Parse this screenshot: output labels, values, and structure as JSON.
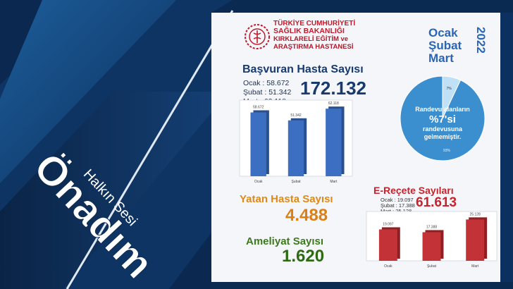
{
  "logo": {
    "line1": "TÜRKİYE CUMHURİYETİ",
    "line2": "SAĞLIK BAKANLIĞI",
    "line3": "KIRKLARELİ EĞİTİM ve",
    "line4": "ARAŞTIRMA HASTANESİ"
  },
  "period": {
    "months": [
      "Ocak",
      "Şubat",
      "Mart"
    ],
    "year": "2022"
  },
  "basvuran": {
    "title": "Başvuran Hasta Sayısı",
    "lines": [
      "Ocak  : 58.672",
      "Şubat : 51.342",
      "Mart  : 62.118"
    ],
    "total": "172.132"
  },
  "yatan": {
    "title": "Yatan Hasta Sayısı",
    "value": "4.488"
  },
  "ameliyat": {
    "title": "Ameliyat Sayısı",
    "value": "1.620"
  },
  "erecete": {
    "title": "E-Reçete Sayıları",
    "lines": [
      "Ocak  : 19.097",
      "Şubat : 17.388",
      "Mart  : 25.128"
    ],
    "total": "61.613"
  },
  "pie": {
    "line1": "Randevu alanların",
    "big": "%7'si",
    "line2": "randevusuna",
    "line3": "gelmemiştir.",
    "small_label": "7%",
    "large_label": "93%",
    "percent_missed": 7
  },
  "brand": {
    "top": "Halkın Sesi",
    "main": "Önadım"
  },
  "colors": {
    "navy": "#0e3766",
    "accent_blue": "#2a66b6",
    "bar_blue": "#3c6fc2",
    "bar_red": "#c23236",
    "pie_blue": "#3b8fcf"
  },
  "chart_data": [
    {
      "type": "bar",
      "categories": [
        "Ocak",
        "Şubat",
        "Mart"
      ],
      "values": [
        58672,
        51342,
        62118
      ],
      "value_labels": [
        "58.672",
        "51.342",
        "62.118"
      ],
      "ylim": [
        0,
        70000
      ]
    },
    {
      "type": "bar",
      "categories": [
        "Ocak",
        "Şubat",
        "Mart"
      ],
      "values": [
        19097,
        17388,
        25128
      ],
      "value_labels": [
        "19.097",
        "17.388",
        "25.128"
      ],
      "ylim": [
        0,
        30000
      ]
    },
    {
      "type": "pie",
      "categories": [
        "7%",
        "93%"
      ],
      "values": [
        7,
        93
      ]
    }
  ]
}
